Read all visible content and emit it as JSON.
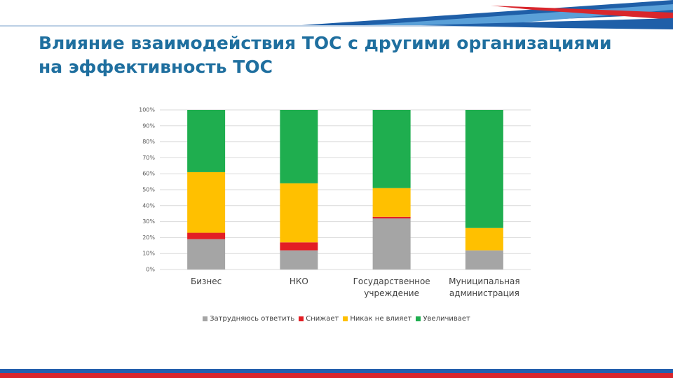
{
  "chart_data": {
    "type": "stacked_bar",
    "title": "Влияние взаимодействия ТОС с другими организациями на эффективность ТОС",
    "categories": [
      "Бизнес",
      "НКО",
      "Государственное учреждение",
      "Муниципальная администрация"
    ],
    "series": [
      {
        "name": "Затрудняюсь ответить",
        "color": "#a5a5a5",
        "values": [
          19,
          12,
          32,
          12
        ]
      },
      {
        "name": "Снижает",
        "color": "#e31e24",
        "values": [
          4,
          5,
          1,
          0
        ]
      },
      {
        "name": "Никак не влияет",
        "color": "#ffc000",
        "values": [
          38,
          37,
          18,
          14
        ]
      },
      {
        "name": "Увеличивает",
        "color": "#1fae4f",
        "values": [
          39,
          46,
          49,
          74
        ]
      }
    ],
    "ylim": [
      0,
      100
    ],
    "yticks": [
      {
        "value": 0,
        "label": "0%"
      },
      {
        "value": 10,
        "label": "10%"
      },
      {
        "value": 20,
        "label": "20%"
      },
      {
        "value": 30,
        "label": "30%"
      },
      {
        "value": 40,
        "label": "40%"
      },
      {
        "value": 50,
        "label": "50%"
      },
      {
        "value": 60,
        "label": "60%"
      },
      {
        "value": 70,
        "label": "70%"
      },
      {
        "value": 80,
        "label": "80%"
      },
      {
        "value": 90,
        "label": "90%"
      },
      {
        "value": 100,
        "label": "100%"
      }
    ],
    "grid": true
  }
}
